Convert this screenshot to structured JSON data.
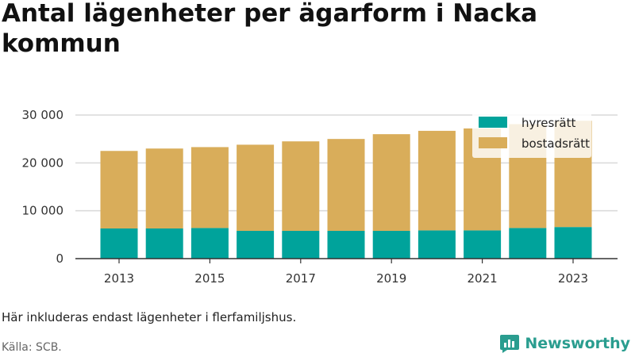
{
  "title": "Antal lägenheter per ägarform i Nacka kommun",
  "note": "Här inkluderas endast lägenheter i flerfamiljshus.",
  "source": "Källa: SCB.",
  "brand": {
    "name": "Newsworthy",
    "icon": "newsworthy-logo-icon",
    "color": "#2a9d8f"
  },
  "colors": {
    "hyresratt": "#00a39b",
    "bostadsratt": "#d9ad5a",
    "grid": "#d9d9d9",
    "axis": "#333333"
  },
  "chart_data": {
    "type": "bar",
    "stacked": true,
    "categories": [
      "2013",
      "2014",
      "2015",
      "2016",
      "2017",
      "2018",
      "2019",
      "2020",
      "2021",
      "2022",
      "2023"
    ],
    "x_tick_labels": [
      "2013",
      "2015",
      "2017",
      "2019",
      "2021",
      "2023"
    ],
    "series": [
      {
        "name": "hyresrätt",
        "color": "#00a39b",
        "values": [
          6300,
          6300,
          6400,
          5800,
          5800,
          5800,
          5800,
          5900,
          5900,
          6400,
          6600
        ]
      },
      {
        "name": "bostadsrätt",
        "color": "#d9ad5a",
        "values": [
          16200,
          16700,
          16900,
          18000,
          18700,
          19200,
          20200,
          20800,
          21300,
          21700,
          22200
        ]
      }
    ],
    "ylim": [
      0,
      30000
    ],
    "y_ticks": [
      0,
      10000,
      20000,
      30000
    ],
    "y_tick_labels": [
      "0",
      "10 000",
      "20 000",
      "30 000"
    ],
    "grid": true,
    "legend": {
      "placement": "top-right",
      "entries": [
        "hyresrätt",
        "bostadsrätt"
      ]
    }
  }
}
